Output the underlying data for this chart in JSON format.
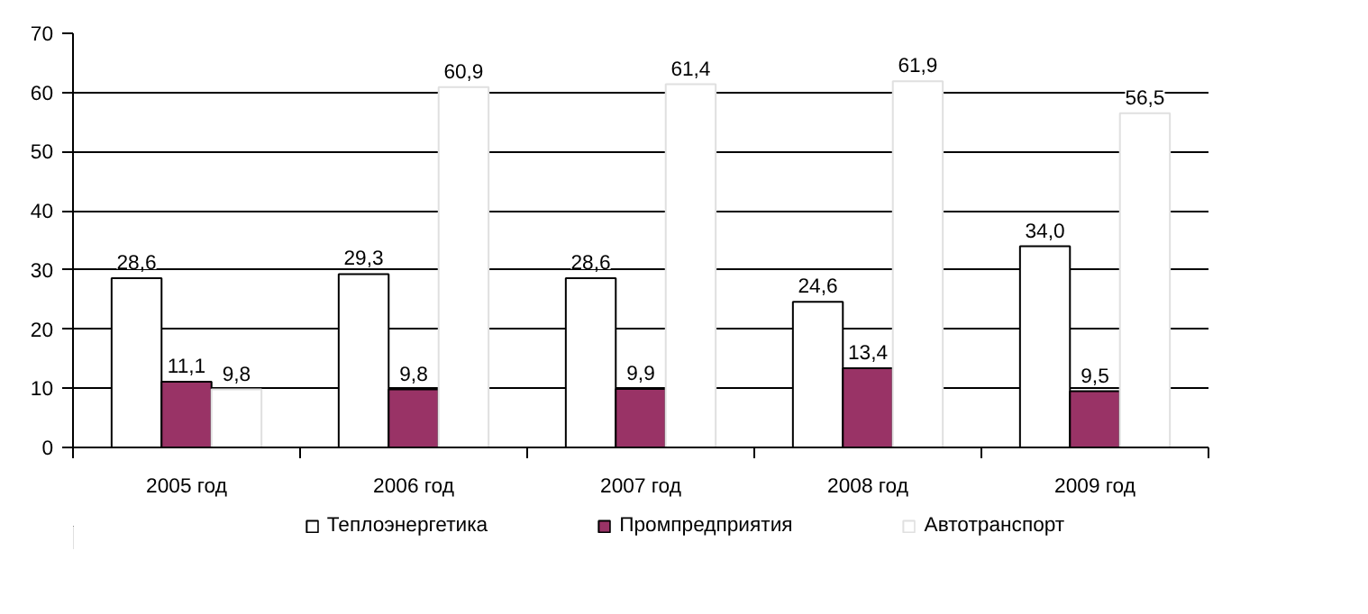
{
  "chart_data": {
    "type": "bar",
    "categories": [
      "2005 год",
      "2006 год",
      "2007 год",
      "2008 год",
      "2009 год"
    ],
    "series": [
      {
        "name": "Теплоэнергетика",
        "color": "#ffffff",
        "values": [
          28.6,
          29.3,
          28.6,
          24.6,
          34.0
        ],
        "value_labels": [
          "28,6",
          "29,3",
          "28,6",
          "24,6",
          "34,0"
        ]
      },
      {
        "name": "Промпредприятия",
        "color": "#993366",
        "values": [
          11.1,
          9.8,
          9.9,
          13.4,
          9.5
        ],
        "value_labels": [
          "11,1",
          "9,8",
          "9,9",
          "13,4",
          "9,5"
        ]
      },
      {
        "name": "Автотранспорт",
        "values": [
          9.8,
          60.9,
          61.4,
          61.9,
          56.5
        ],
        "value_labels": [
          "9,8",
          "60,9",
          "61,4",
          "61,9",
          "56,5"
        ]
      }
    ],
    "ylim": [
      0,
      70
    ],
    "yticks": [
      0,
      10,
      20,
      30,
      40,
      50,
      60,
      70
    ],
    "grid": "y",
    "legend": "bottom"
  }
}
